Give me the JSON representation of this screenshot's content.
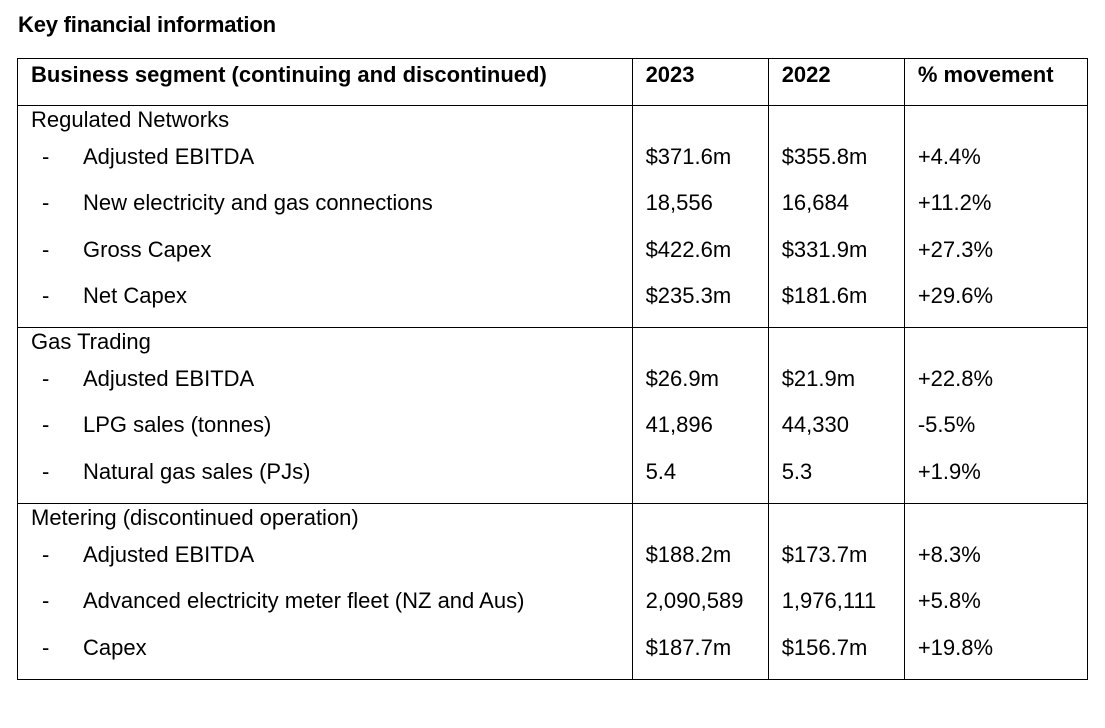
{
  "title": "Key financial information",
  "table": {
    "headers": [
      "Business segment (continuing and discontinued)",
      "2023",
      "2022",
      "% movement"
    ],
    "segments": [
      {
        "name": "Regulated Networks",
        "rows": [
          {
            "bullet": "-",
            "label": "Adjusted EBITDA",
            "y2023": "$371.6m",
            "y2022": "$355.8m",
            "movement": "+4.4%"
          },
          {
            "bullet": "-",
            "label": "New electricity and gas connections",
            "y2023": "18,556",
            "y2022": "16,684",
            "movement": "+11.2%"
          },
          {
            "bullet": "-",
            "label": "Gross Capex",
            "y2023": "$422.6m",
            "y2022": "$331.9m",
            "movement": "+27.3%"
          },
          {
            "bullet": "-",
            "label": "Net Capex",
            "y2023": "$235.3m",
            "y2022": "$181.6m",
            "movement": "+29.6%"
          }
        ]
      },
      {
        "name": "Gas Trading",
        "rows": [
          {
            "bullet": "-",
            "label": "Adjusted EBITDA",
            "y2023": "$26.9m",
            "y2022": "$21.9m",
            "movement": "+22.8%"
          },
          {
            "bullet": "-",
            "label": "LPG sales (tonnes)",
            "y2023": "41,896",
            "y2022": "44,330",
            "movement": "-5.5%"
          },
          {
            "bullet": "-",
            "label": "Natural gas sales (PJs)",
            "y2023": "5.4",
            "y2022": "5.3",
            "movement": "+1.9%"
          }
        ]
      },
      {
        "name": "Metering (discontinued operation)",
        "rows": [
          {
            "bullet": "-",
            "label": "Adjusted EBITDA",
            "y2023": "$188.2m",
            "y2022": "$173.7m",
            "movement": "+8.3%"
          },
          {
            "bullet": "-",
            "label": "Advanced electricity meter fleet (NZ and Aus)",
            "y2023": "2,090,589",
            "y2022": "1,976,111",
            "movement": "+5.8%"
          },
          {
            "bullet": "-",
            "label": "Capex",
            "y2023": "$187.7m",
            "y2022": "$156.7m",
            "movement": "+19.8%"
          }
        ]
      }
    ]
  }
}
